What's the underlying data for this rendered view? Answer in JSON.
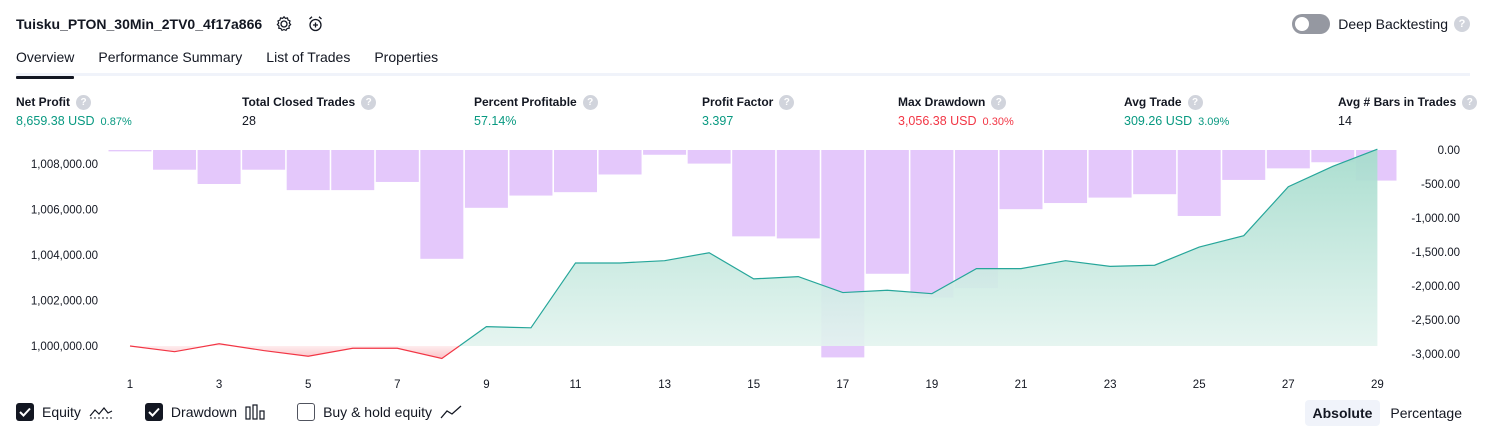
{
  "header": {
    "title": "Tuisku_PTON_30Min_2TV0_4f17a866",
    "deep_backtesting_label": "Deep Backtesting"
  },
  "tabs": [
    {
      "label": "Overview",
      "active": true
    },
    {
      "label": "Performance Summary",
      "active": false
    },
    {
      "label": "List of Trades",
      "active": false
    },
    {
      "label": "Properties",
      "active": false
    }
  ],
  "metrics": {
    "net_profit": {
      "label": "Net Profit",
      "value": "8,659.38 USD",
      "pct": "0.87%"
    },
    "total_closed_trades": {
      "label": "Total Closed Trades",
      "value": "28"
    },
    "percent_profitable": {
      "label": "Percent Profitable",
      "value": "57.14%"
    },
    "profit_factor": {
      "label": "Profit Factor",
      "value": "3.397"
    },
    "max_drawdown": {
      "label": "Max Drawdown",
      "value": "3,056.38 USD",
      "pct": "0.30%"
    },
    "avg_trade": {
      "label": "Avg Trade",
      "value": "309.26 USD",
      "pct": "3.09%"
    },
    "avg_bars": {
      "label": "Avg # Bars in Trades",
      "value": "14"
    }
  },
  "colors": {
    "positive": "#089981",
    "negative": "#f23645",
    "drawdown_bar": "#e1c2fb",
    "equity_line": "#26a69a",
    "equity_fill": "#b9e4d9",
    "equity_loss_line": "#f23645"
  },
  "chart_data": {
    "type": "line",
    "x": [
      1,
      2,
      3,
      4,
      5,
      6,
      7,
      8,
      9,
      10,
      11,
      12,
      13,
      14,
      15,
      16,
      17,
      18,
      19,
      20,
      21,
      22,
      23,
      24,
      25,
      26,
      27,
      28,
      29
    ],
    "x_ticks": [
      "1",
      "3",
      "5",
      "7",
      "9",
      "11",
      "13",
      "15",
      "17",
      "19",
      "21",
      "23",
      "25",
      "27",
      "29"
    ],
    "series": [
      {
        "axis": "left",
        "type": "line",
        "values": [
          1000000,
          999750,
          1000100,
          999800,
          999550,
          999900,
          999900,
          999450,
          1000850,
          1000800,
          1003650,
          1003650,
          1003750,
          1004100,
          1002950,
          1003050,
          1002350,
          1002450,
          1002300,
          1003400,
          1003400,
          1003750,
          1003500,
          1003550,
          1004350,
          1004850,
          1007000,
          1007900,
          1008650
        ]
      },
      {
        "axis": "right",
        "type": "bar",
        "values": [
          -20,
          -290,
          -500,
          -290,
          -590,
          -590,
          -470,
          -1600,
          -850,
          -670,
          -620,
          -360,
          -70,
          -200,
          -1270,
          -1300,
          -3050,
          -1820,
          -2170,
          -2030,
          -870,
          -780,
          -700,
          -650,
          -970,
          -440,
          -270,
          -180,
          -450
        ]
      }
    ],
    "left_axis": {
      "ticks": [
        "1,000,000.00",
        "1,002,000.00",
        "1,004,000.00",
        "1,006,000.00",
        "1,008,000.00"
      ],
      "range": [
        999000,
        1008650
      ]
    },
    "right_axis": {
      "ticks": [
        "0.00",
        "-500.00",
        "-1,000.00",
        "-1,500.00",
        "-2,000.00",
        "-2,500.00",
        "-3,000.00"
      ],
      "range": [
        -3000,
        0
      ]
    }
  },
  "legend": {
    "equity": {
      "label": "Equity",
      "checked": true
    },
    "drawdown": {
      "label": "Drawdown",
      "checked": true
    },
    "buy_hold": {
      "label": "Buy & hold equity",
      "checked": false
    }
  },
  "modes": {
    "absolute": "Absolute",
    "percentage": "Percentage",
    "selected": "absolute"
  }
}
